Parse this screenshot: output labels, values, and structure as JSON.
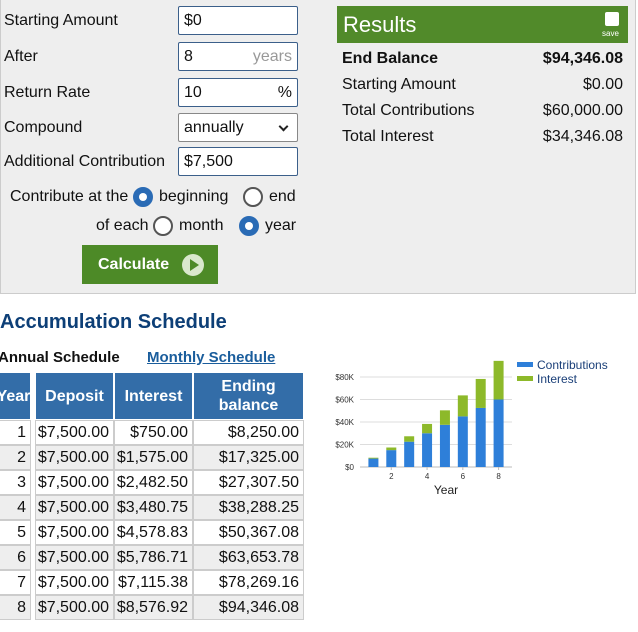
{
  "form": {
    "starting_amount": {
      "label": "Starting Amount",
      "value": "$0"
    },
    "after": {
      "label": "After",
      "value": "8",
      "unit": "years"
    },
    "return_rate": {
      "label": "Return Rate",
      "value": "10",
      "unit": "%"
    },
    "compound": {
      "label": "Compound",
      "value": "annually"
    },
    "additional_contribution": {
      "label": "Additional Contribution",
      "value": "$7,500"
    },
    "contribute_at": {
      "label": "Contribute at the",
      "options": [
        "beginning",
        "end"
      ],
      "selected": 0
    },
    "of_each": {
      "label": "of each",
      "options": [
        "month",
        "year"
      ],
      "selected": 1
    },
    "button": "Calculate"
  },
  "results": {
    "title": "Results",
    "save": "save",
    "rows": [
      [
        "End Balance",
        "$94,346.08"
      ],
      [
        "Starting Amount",
        "$0.00"
      ],
      [
        "Total Contributions",
        "$60,000.00"
      ],
      [
        "Total Interest",
        "$34,346.08"
      ]
    ]
  },
  "schedule": {
    "title": "Accumulation Schedule",
    "tabs": [
      "Annual Schedule",
      "Monthly Schedule"
    ],
    "active_tab": 0,
    "table": {
      "columns": [
        "Year",
        "Deposit",
        "Interest",
        "Ending balance"
      ],
      "rows": [
        [
          1,
          "$7,500.00",
          "$750.00",
          "$8,250.00"
        ],
        [
          2,
          "$7,500.00",
          "$1,575.00",
          "$17,325.00"
        ],
        [
          3,
          "$7,500.00",
          "$2,482.50",
          "$27,307.50"
        ],
        [
          4,
          "$7,500.00",
          "$3,480.75",
          "$38,288.25"
        ],
        [
          5,
          "$7,500.00",
          "$4,578.83",
          "$50,367.08"
        ],
        [
          6,
          "$7,500.00",
          "$5,786.71",
          "$63,653.78"
        ],
        [
          7,
          "$7,500.00",
          "$7,115.38",
          "$78,269.16"
        ],
        [
          8,
          "$7,500.00",
          "$8,576.92",
          "$94,346.08"
        ]
      ]
    }
  },
  "chart": {
    "type": "bar",
    "stacked": true,
    "x_label": "Year",
    "x": [
      1,
      2,
      3,
      4,
      5,
      6,
      7,
      8
    ],
    "xlim": [
      0.25,
      8.75
    ],
    "xticks": [
      2,
      4,
      6,
      8
    ],
    "ylim": [
      0,
      100000
    ],
    "yticks": [
      {
        "value": 0,
        "label": "$0"
      },
      {
        "value": 20000,
        "label": "$20K"
      },
      {
        "value": 40000,
        "label": "$40K"
      },
      {
        "value": 60000,
        "label": "$60K"
      },
      {
        "value": 80000,
        "label": "$80K"
      }
    ],
    "grid": true,
    "series": [
      {
        "name": "Contributions",
        "color": "#2e7fd9",
        "values": [
          7500,
          15000,
          22500,
          30000,
          37500,
          45000,
          52500,
          60000
        ]
      },
      {
        "name": "Interest",
        "color": "#8db92a",
        "values": [
          750,
          2325,
          4807.5,
          8288.25,
          12867.08,
          18653.78,
          25769.16,
          34346.08
        ]
      }
    ]
  }
}
